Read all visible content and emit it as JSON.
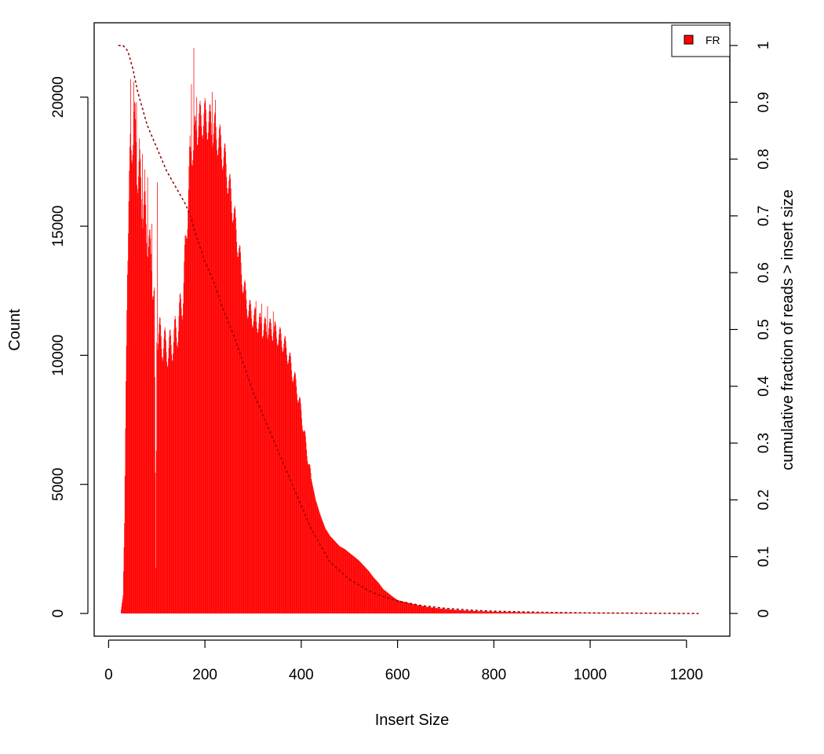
{
  "chart_data": {
    "type": "histogram",
    "xlabel": "Insert Size",
    "ylabel": "Count",
    "y2label": "cumulative fraction of reads > insert size",
    "xlim": [
      -30,
      1290
    ],
    "ylim": [
      -880,
      22880
    ],
    "y2lim": [
      -0.04,
      1.04
    ],
    "x_ticks": [
      0,
      200,
      400,
      600,
      800,
      1000,
      1200
    ],
    "y_ticks": [
      0,
      5000,
      10000,
      15000,
      20000
    ],
    "y2_ticks": [
      0,
      0.1,
      0.2,
      0.3,
      0.4,
      0.5,
      0.6,
      0.7,
      0.8,
      0.9,
      1
    ],
    "legend": {
      "position": "top-right",
      "entries": [
        "FR"
      ]
    },
    "series": [
      {
        "name": "FR",
        "color": "#ff0000",
        "kind": "histogram",
        "x": [
          20,
          25,
          30,
          33,
          36,
          40,
          45,
          50,
          55,
          60,
          65,
          70,
          75,
          80,
          85,
          90,
          95,
          98,
          100,
          105,
          110,
          115,
          120,
          125,
          130,
          135,
          140,
          145,
          150,
          155,
          160,
          165,
          170,
          175,
          180,
          185,
          190,
          200,
          210,
          220,
          230,
          240,
          250,
          260,
          270,
          280,
          290,
          300,
          310,
          320,
          330,
          340,
          350,
          360,
          370,
          380,
          390,
          400,
          410,
          420,
          430,
          440,
          450,
          460,
          470,
          480,
          490,
          500,
          510,
          520,
          530,
          540,
          550,
          560,
          570,
          580,
          590,
          600,
          620,
          640,
          660,
          680,
          700,
          720,
          740,
          760,
          780,
          800,
          850,
          900,
          950,
          1000,
          1050,
          1100,
          1150,
          1200,
          1225
        ],
        "y": [
          0,
          0,
          700,
          3500,
          9000,
          14500,
          17500,
          19000,
          18500,
          17500,
          16800,
          16000,
          15500,
          14800,
          14000,
          13500,
          12000,
          1700,
          11000,
          10800,
          10600,
          10400,
          10300,
          10200,
          10400,
          10600,
          10900,
          11200,
          11800,
          12500,
          14000,
          16500,
          17500,
          18200,
          18600,
          18900,
          19100,
          19200,
          19000,
          18700,
          18300,
          17700,
          16600,
          15500,
          14100,
          12700,
          11800,
          11500,
          11300,
          11100,
          11000,
          11000,
          10800,
          10600,
          10200,
          9500,
          8800,
          7800,
          6500,
          5300,
          4400,
          3800,
          3300,
          3000,
          2800,
          2600,
          2500,
          2350,
          2200,
          2050,
          1850,
          1650,
          1400,
          1200,
          950,
          800,
          650,
          520,
          420,
          330,
          260,
          210,
          170,
          140,
          115,
          95,
          80,
          65,
          45,
          30,
          20,
          15,
          10,
          8,
          6,
          4,
          3
        ],
        "peaks": [
          {
            "x": 46,
            "y": 20700
          },
          {
            "x": 52,
            "y": 20600
          },
          {
            "x": 58,
            "y": 19800
          },
          {
            "x": 64,
            "y": 18400
          },
          {
            "x": 70,
            "y": 17800
          },
          {
            "x": 75,
            "y": 17200
          },
          {
            "x": 81,
            "y": 16900
          },
          {
            "x": 90,
            "y": 15100
          },
          {
            "x": 101,
            "y": 16700
          },
          {
            "x": 177,
            "y": 21900
          },
          {
            "x": 172,
            "y": 20500
          },
          {
            "x": 183,
            "y": 20000
          },
          {
            "x": 215,
            "y": 20200
          },
          {
            "x": 222,
            "y": 19900
          },
          {
            "x": 306,
            "y": 12100
          },
          {
            "x": 318,
            "y": 12000
          },
          {
            "x": 330,
            "y": 11900
          },
          {
            "x": 342,
            "y": 11700
          }
        ]
      },
      {
        "name": "cumulative fraction of reads > insert size",
        "color": "#8b0000",
        "kind": "dashed-line",
        "axis": "right",
        "x": [
          20,
          30,
          40,
          50,
          60,
          80,
          100,
          120,
          140,
          160,
          170,
          180,
          200,
          220,
          240,
          260,
          280,
          300,
          320,
          340,
          360,
          380,
          400,
          420,
          440,
          460,
          480,
          500,
          520,
          540,
          560,
          580,
          600,
          650,
          700,
          750,
          800,
          900,
          1000,
          1100,
          1225
        ],
        "y": [
          1.0,
          1.0,
          0.99,
          0.96,
          0.92,
          0.86,
          0.82,
          0.78,
          0.75,
          0.72,
          0.7,
          0.67,
          0.62,
          0.58,
          0.53,
          0.49,
          0.44,
          0.39,
          0.35,
          0.31,
          0.27,
          0.23,
          0.19,
          0.15,
          0.12,
          0.09,
          0.075,
          0.06,
          0.05,
          0.04,
          0.033,
          0.027,
          0.022,
          0.014,
          0.009,
          0.006,
          0.004,
          0.002,
          0.001,
          0.0005,
          0.0
        ]
      }
    ]
  }
}
